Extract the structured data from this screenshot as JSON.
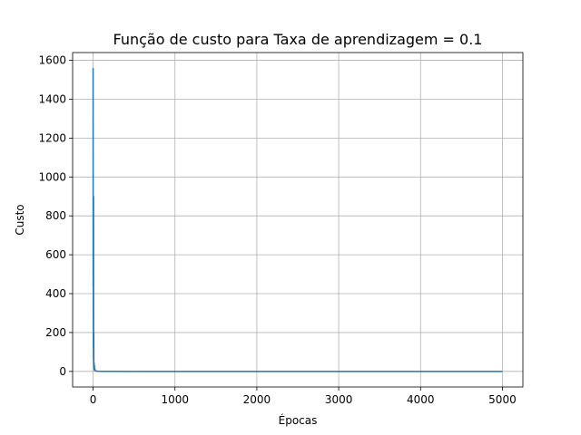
{
  "chart_data": {
    "type": "line",
    "title": "Função de custo para Taxa de aprendizagem = 0.1",
    "xlabel": "Épocas",
    "ylabel": "Custo",
    "xlim": [
      -250,
      5250
    ],
    "ylim": [
      -80,
      1640
    ],
    "xticks": [
      0,
      1000,
      2000,
      3000,
      4000,
      5000
    ],
    "yticks": [
      0,
      200,
      400,
      600,
      800,
      1000,
      1200,
      1400,
      1600
    ],
    "grid": true,
    "series": [
      {
        "color": "#1f77b4",
        "x": [
          0,
          1,
          2,
          3,
          4,
          5,
          6,
          7,
          8,
          9,
          10,
          12,
          14,
          16,
          18,
          20,
          25,
          30,
          40,
          60,
          100,
          200,
          500,
          1000,
          2000,
          3000,
          4000,
          5000
        ],
        "y": [
          1560,
          440,
          560,
          300,
          120,
          900,
          90,
          60,
          200,
          40,
          20,
          45,
          10,
          30,
          5,
          15,
          4,
          3,
          2,
          1,
          0.5,
          0.3,
          0.1,
          0.05,
          0.02,
          0.01,
          0.01,
          0.01
        ]
      }
    ]
  }
}
